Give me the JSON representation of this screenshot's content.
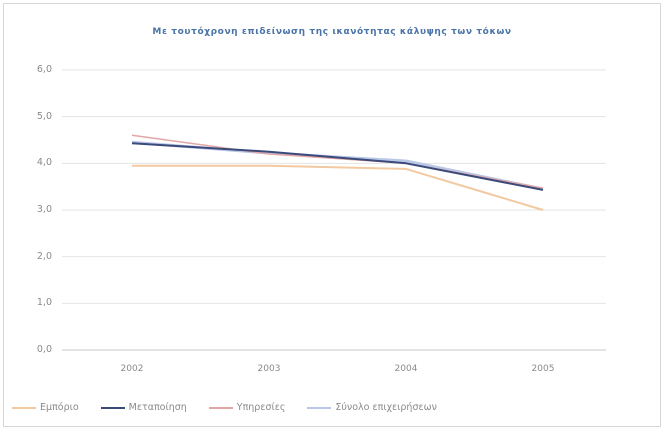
{
  "chart_data": {
    "type": "line",
    "title": "Με τουτόχρονη επιδείνωση της ικανότητας κάλυψης των τόκων",
    "xlabel": "",
    "ylabel": "",
    "categories": [
      "2002",
      "2003",
      "2004",
      "2005"
    ],
    "ylim": [
      0,
      6
    ],
    "yticks": [
      "0,0",
      "1,0",
      "2,0",
      "3,0",
      "4,0",
      "5,0",
      "6,0"
    ],
    "grid": true,
    "legend_position": "bottom",
    "series": [
      {
        "name": "Εμπόριο",
        "values": [
          3.95,
          3.95,
          3.88,
          3.0
        ],
        "color": "#f2c9a0"
      },
      {
        "name": "Μεταποίηση",
        "values": [
          4.43,
          4.25,
          4.0,
          3.43
        ],
        "color": "#3a4a7a"
      },
      {
        "name": "Υπηρεσίες",
        "values": [
          4.6,
          4.2,
          4.0,
          3.47
        ],
        "color": "#e2a6a6"
      },
      {
        "name": "Σύνολο επιχειρήσεων",
        "values": [
          4.45,
          4.22,
          4.05,
          3.45
        ],
        "color": "#b9c8e6"
      }
    ]
  }
}
